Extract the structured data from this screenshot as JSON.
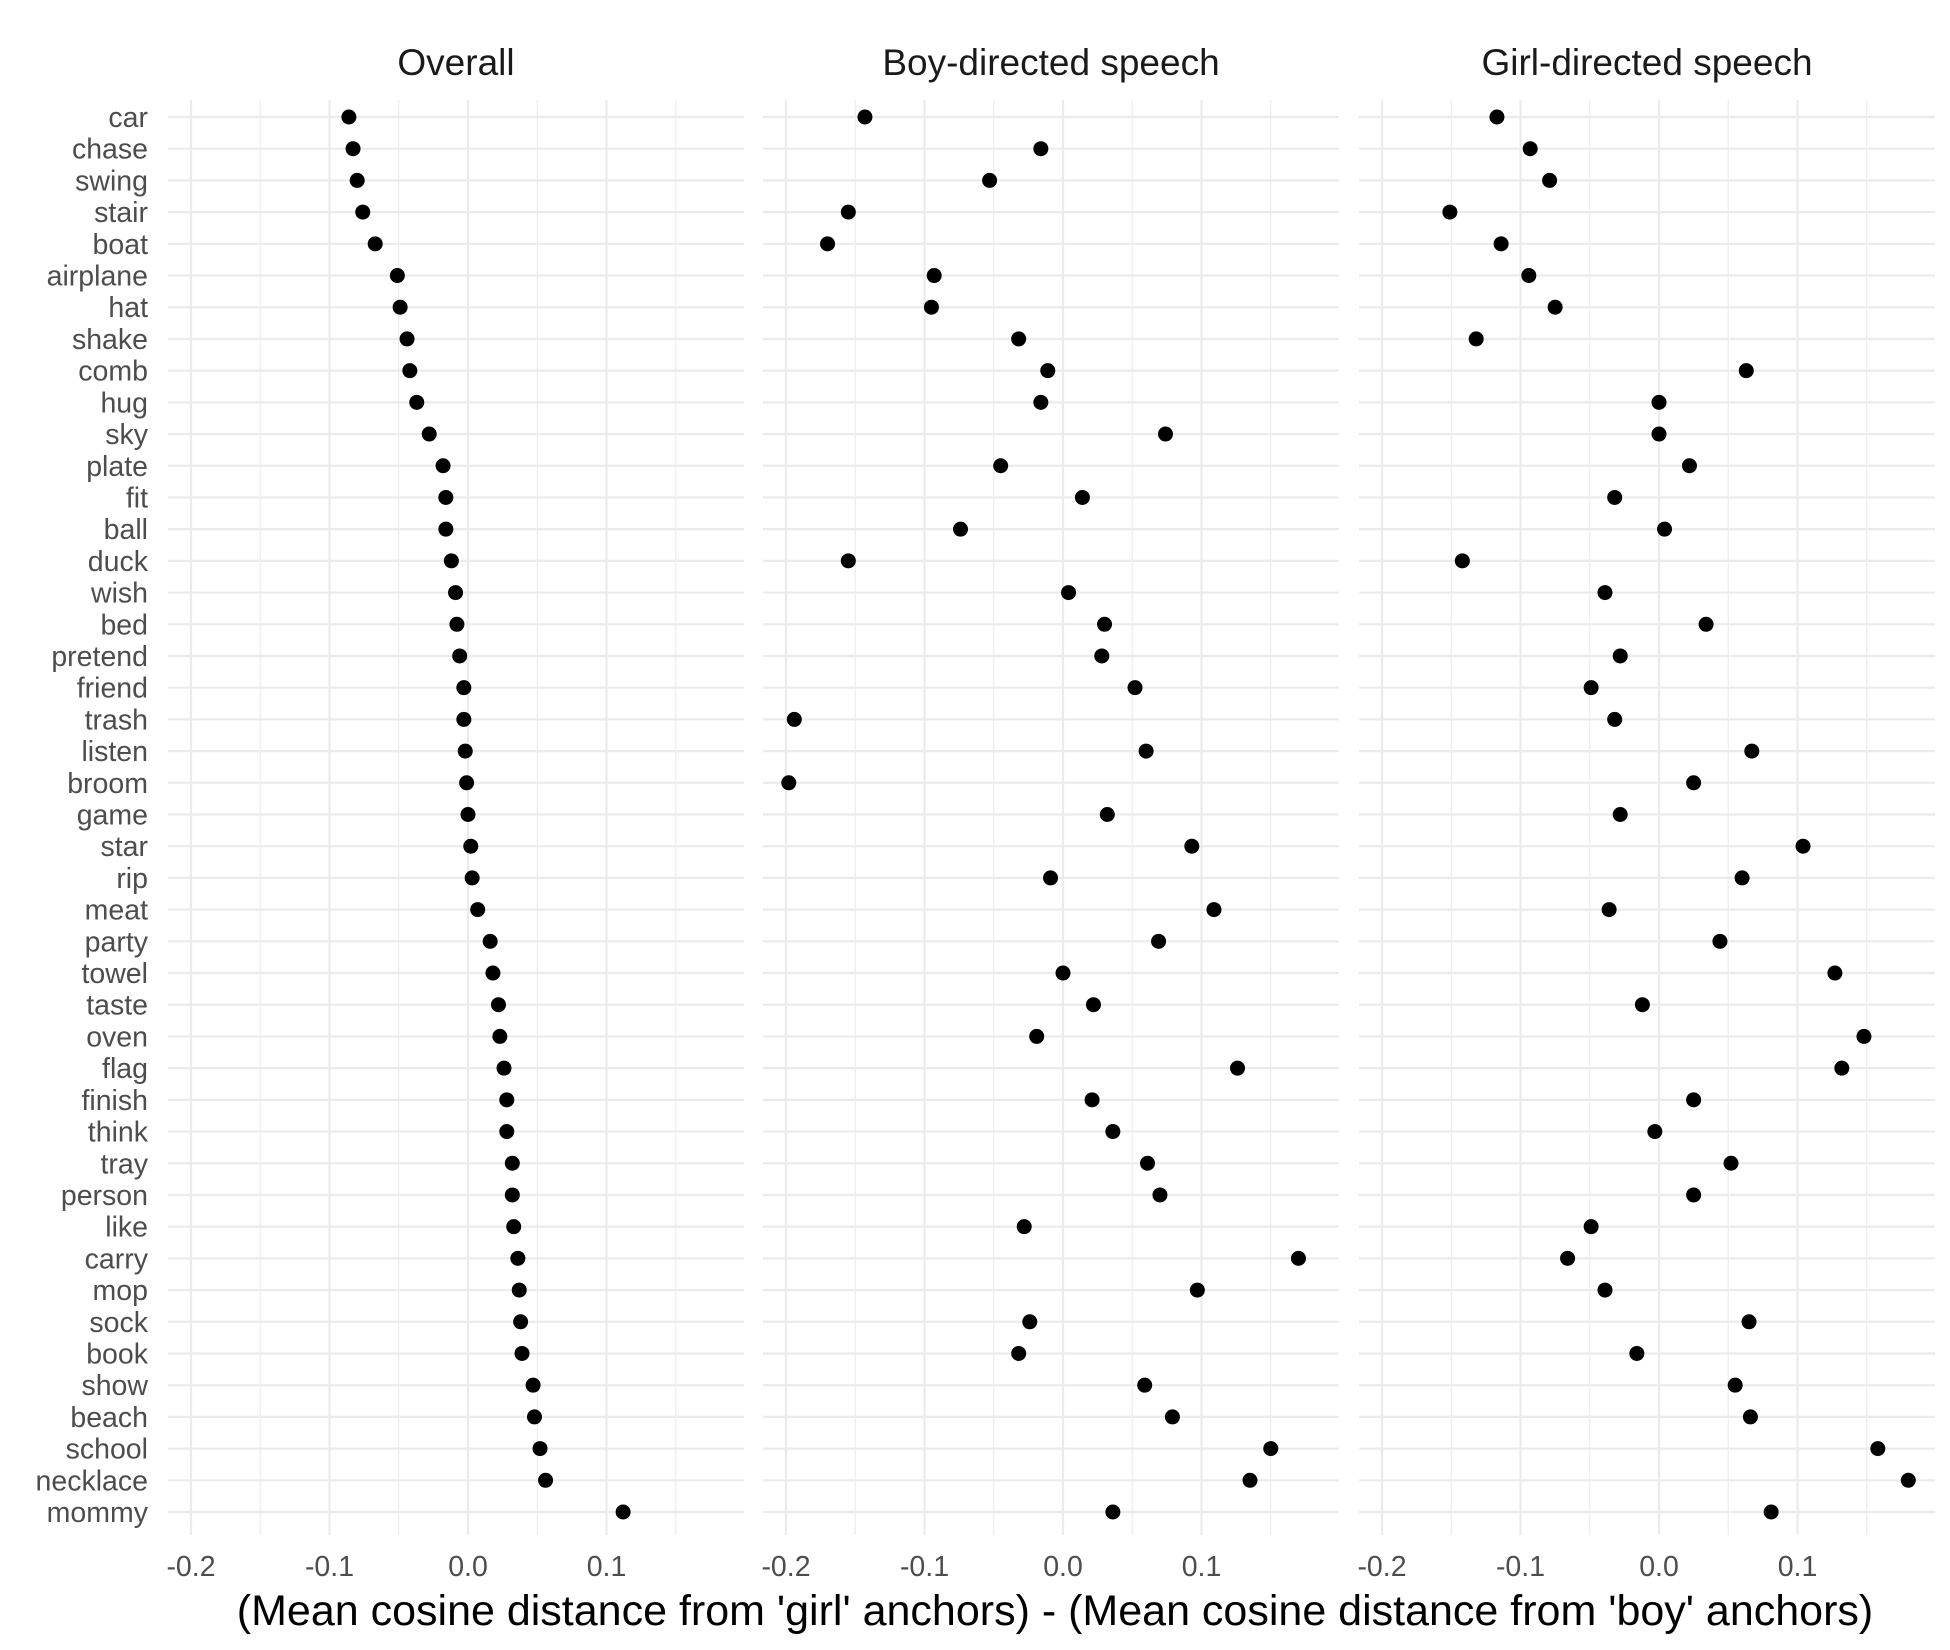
{
  "chart_data": {
    "type": "scatter",
    "xlabel": "(Mean cosine distance from 'girl' anchors) - (Mean cosine distance from 'boy' anchors)",
    "ylabel": "",
    "xlim": [
      -0.22,
      0.18
    ],
    "x_ticks": [
      -0.2,
      -0.1,
      0.0,
      0.1
    ],
    "x_tick_labels": [
      "-0.2",
      "-0.1",
      "0.0",
      "0.1"
    ],
    "grid": true,
    "legend": "none",
    "dot_color": "#000000",
    "categories": [
      "car",
      "chase",
      "swing",
      "stair",
      "boat",
      "airplane",
      "hat",
      "shake",
      "comb",
      "hug",
      "sky",
      "plate",
      "fit",
      "ball",
      "duck",
      "wish",
      "bed",
      "pretend",
      "friend",
      "trash",
      "listen",
      "broom",
      "game",
      "star",
      "rip",
      "meat",
      "party",
      "towel",
      "taste",
      "oven",
      "flag",
      "finish",
      "think",
      "tray",
      "person",
      "like",
      "carry",
      "mop",
      "sock",
      "book",
      "show",
      "beach",
      "school",
      "necklace",
      "mommy"
    ],
    "panels": [
      {
        "title": "Overall",
        "values": [
          -0.086,
          -0.083,
          -0.08,
          -0.076,
          -0.067,
          -0.051,
          -0.049,
          -0.044,
          -0.042,
          -0.037,
          -0.028,
          -0.018,
          -0.016,
          -0.016,
          -0.012,
          -0.009,
          -0.008,
          -0.006,
          -0.003,
          -0.003,
          -0.002,
          -0.001,
          0.0,
          0.002,
          0.003,
          0.007,
          0.016,
          0.018,
          0.022,
          0.023,
          0.026,
          0.028,
          0.028,
          0.032,
          0.032,
          0.033,
          0.036,
          0.037,
          0.038,
          0.039,
          0.047,
          0.048,
          0.052,
          0.056,
          0.112
        ]
      },
      {
        "title": "Boy-directed speech",
        "values": [
          -0.143,
          -0.016,
          -0.053,
          -0.155,
          -0.17,
          -0.093,
          -0.095,
          -0.032,
          -0.011,
          -0.016,
          0.074,
          -0.045,
          0.014,
          -0.074,
          -0.155,
          0.004,
          0.03,
          0.028,
          0.052,
          -0.194,
          0.06,
          -0.198,
          0.032,
          0.093,
          -0.009,
          0.109,
          0.069,
          0.0,
          0.022,
          -0.019,
          0.126,
          0.021,
          0.036,
          0.061,
          0.07,
          -0.028,
          0.17,
          0.097,
          -0.024,
          -0.032,
          0.059,
          0.079,
          0.15,
          0.135,
          0.036
        ]
      },
      {
        "title": "Girl-directed speech",
        "values": [
          -0.117,
          -0.093,
          -0.079,
          -0.151,
          -0.114,
          -0.094,
          -0.075,
          -0.132,
          0.063,
          0.0,
          0.0,
          0.022,
          -0.032,
          0.004,
          -0.142,
          -0.039,
          0.034,
          -0.028,
          -0.049,
          -0.032,
          0.067,
          0.025,
          -0.028,
          0.104,
          0.06,
          -0.036,
          0.044,
          0.127,
          -0.012,
          0.148,
          0.132,
          0.025,
          -0.003,
          0.052,
          0.025,
          -0.049,
          -0.066,
          -0.039,
          0.065,
          -0.016,
          0.055,
          0.066,
          0.158,
          0.18,
          0.081
        ]
      }
    ]
  }
}
